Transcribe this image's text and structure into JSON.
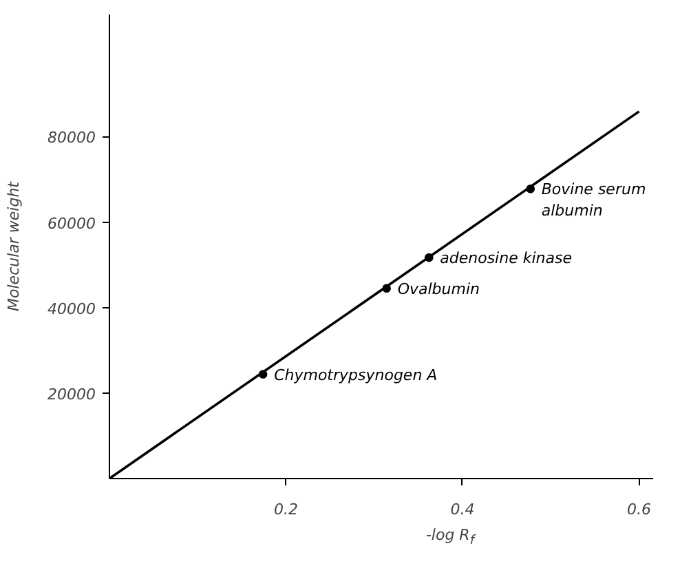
{
  "chart_data": {
    "type": "scatter",
    "xlabel": "-log R$_{f}$",
    "ylabel": "Molecular weight",
    "xlim": [
      0,
      0.616
    ],
    "ylim": [
      0,
      108600
    ],
    "xticks": [
      0.2,
      0.4,
      0.6
    ],
    "yticks": [
      20000,
      40000,
      60000,
      80000
    ],
    "grid": false,
    "series": [
      {
        "type": "line",
        "color": "#000000",
        "x": [
          0,
          0.6
        ],
        "values": [
          0,
          85900
        ],
        "line_style": "solid"
      },
      {
        "color": "#000000",
        "x": [
          0.174,
          0.314,
          0.477
        ],
        "values": [
          24400,
          44500,
          67800
        ],
        "marker": "circle"
      },
      {
        "color": "#000000",
        "x": [
          0.362
        ],
        "values": [
          51700
        ],
        "marker": "circle"
      }
    ],
    "annotations": [
      {
        "text": "Chymotrypsynogen A",
        "x": 0.174,
        "y": 24400
      },
      {
        "text": "Ovalbumin",
        "x": 0.314,
        "y": 44500
      },
      {
        "text": "adenosine kinase",
        "x": 0.362,
        "y": 51700
      },
      {
        "text": "Bovine serum\nalbumin",
        "x": 0.477,
        "y": 67800
      }
    ]
  }
}
